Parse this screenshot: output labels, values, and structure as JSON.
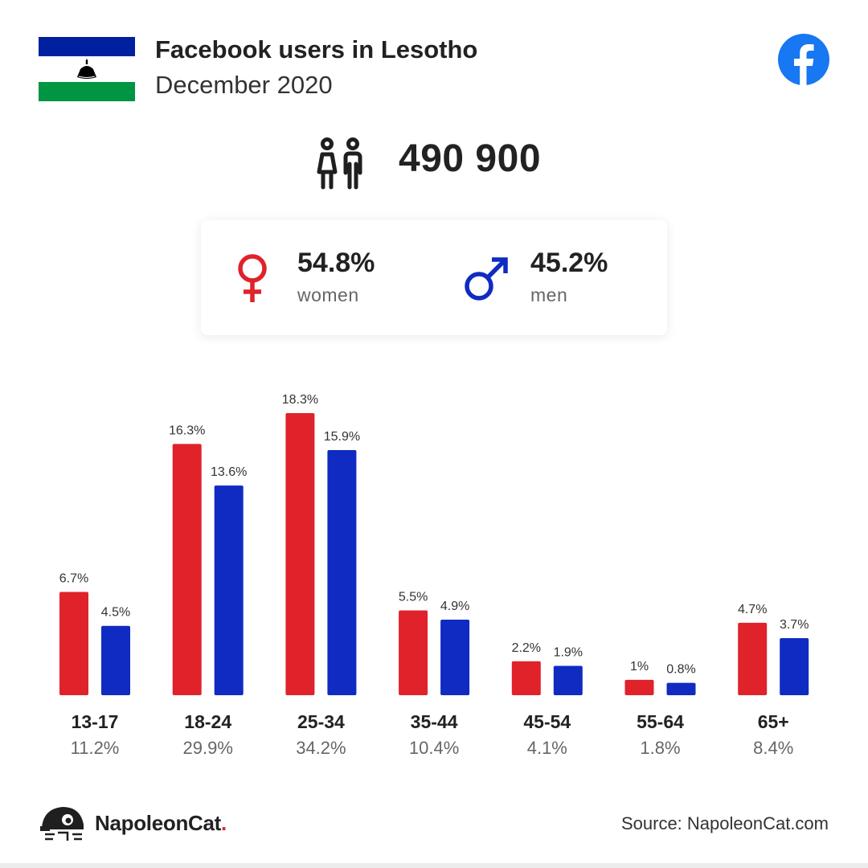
{
  "header": {
    "title": "Facebook users in Lesotho",
    "subtitle": "December 2020"
  },
  "total_users": "490 900",
  "gender": {
    "women": {
      "percent": "54.8%",
      "label": "women"
    },
    "men": {
      "percent": "45.2%",
      "label": "men"
    }
  },
  "colors": {
    "women": "#e0222b",
    "men": "#0f2bc1",
    "facebook": "#1877f2",
    "flag_blue": "#00209f",
    "flag_green": "#009543"
  },
  "icons": [
    "lesotho-flag-icon",
    "facebook-logo-icon",
    "users-icon",
    "female-symbol-icon",
    "male-symbol-icon",
    "napoleoncat-logo-icon"
  ],
  "chart_data": {
    "type": "bar",
    "categories": [
      "13-17",
      "18-24",
      "25-34",
      "35-44",
      "45-54",
      "55-64",
      "65+"
    ],
    "series": [
      {
        "values": [
          6.7,
          16.3,
          18.3,
          5.5,
          2.2,
          1,
          4.7
        ],
        "labels": [
          "6.7%",
          "16.3%",
          "18.3%",
          "5.5%",
          "2.2%",
          "1%",
          "4.7%"
        ],
        "color": "#e0222b"
      },
      {
        "values": [
          4.5,
          13.6,
          15.9,
          4.9,
          1.9,
          0.8,
          3.7
        ],
        "labels": [
          "4.5%",
          "13.6%",
          "15.9%",
          "4.9%",
          "1.9%",
          "0.8%",
          "3.7%"
        ],
        "color": "#0f2bc1"
      }
    ],
    "totals": [
      "11.2%",
      "29.9%",
      "34.2%",
      "10.4%",
      "4.1%",
      "1.8%",
      "8.4%"
    ],
    "ylim": [
      0,
      18.3
    ],
    "grid": false,
    "legend": "none"
  },
  "footer": {
    "brand": "NapoleonCat",
    "brand_dot": ".",
    "source": "Source: NapoleonCat.com"
  }
}
